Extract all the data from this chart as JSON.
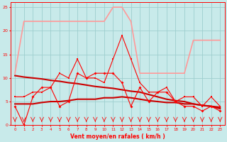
{
  "xlabel": "Vent moyen/en rafales ( km/h )",
  "xlim": [
    -0.5,
    23.5
  ],
  "ylim": [
    0,
    26
  ],
  "yticks": [
    0,
    5,
    10,
    15,
    20,
    25
  ],
  "xticks": [
    0,
    1,
    2,
    3,
    4,
    5,
    6,
    7,
    8,
    9,
    10,
    11,
    12,
    13,
    14,
    15,
    16,
    17,
    18,
    19,
    20,
    21,
    22,
    23
  ],
  "bg_color": "#c8eaea",
  "grid_color": "#9ecece",
  "hours": [
    0,
    1,
    2,
    3,
    4,
    5,
    6,
    7,
    8,
    9,
    10,
    11,
    12,
    13,
    14,
    15,
    16,
    17,
    18,
    19,
    20,
    21,
    22,
    23
  ],
  "wind_avg": [
    4,
    0,
    6,
    8,
    8,
    4,
    5,
    11,
    10,
    11,
    11,
    11,
    9,
    4,
    8,
    5,
    7,
    7,
    5,
    4,
    4,
    3,
    4,
    3
  ],
  "wind_gust": [
    6,
    6,
    7,
    7,
    8,
    11,
    10,
    14,
    10,
    10,
    9,
    14,
    19,
    14,
    9,
    7,
    7,
    8,
    5,
    6,
    6,
    4,
    6,
    4
  ],
  "gust_envelope": [
    11,
    22,
    22,
    22,
    22,
    22,
    22,
    22,
    22,
    22,
    22,
    25,
    25,
    22,
    11,
    11,
    11,
    11,
    11,
    11,
    18,
    18,
    18,
    18
  ],
  "trend_high": [
    10.5,
    10.2,
    10.0,
    9.8,
    9.5,
    9.3,
    9.0,
    8.8,
    8.5,
    8.2,
    8.0,
    7.8,
    7.5,
    7.2,
    7.0,
    6.5,
    6.0,
    5.5,
    5.2,
    5.0,
    4.5,
    4.2,
    4.0,
    3.5
  ],
  "trend_low": [
    4.5,
    4.5,
    4.5,
    4.8,
    5.0,
    5.0,
    5.2,
    5.5,
    5.5,
    5.5,
    5.8,
    5.8,
    6.0,
    5.8,
    5.5,
    5.2,
    5.0,
    4.8,
    4.8,
    4.5,
    4.5,
    4.2,
    4.0,
    3.8
  ],
  "color_envelope": "#ff9999",
  "color_bright_red": "#ff0000",
  "color_dark_red": "#cc0000"
}
